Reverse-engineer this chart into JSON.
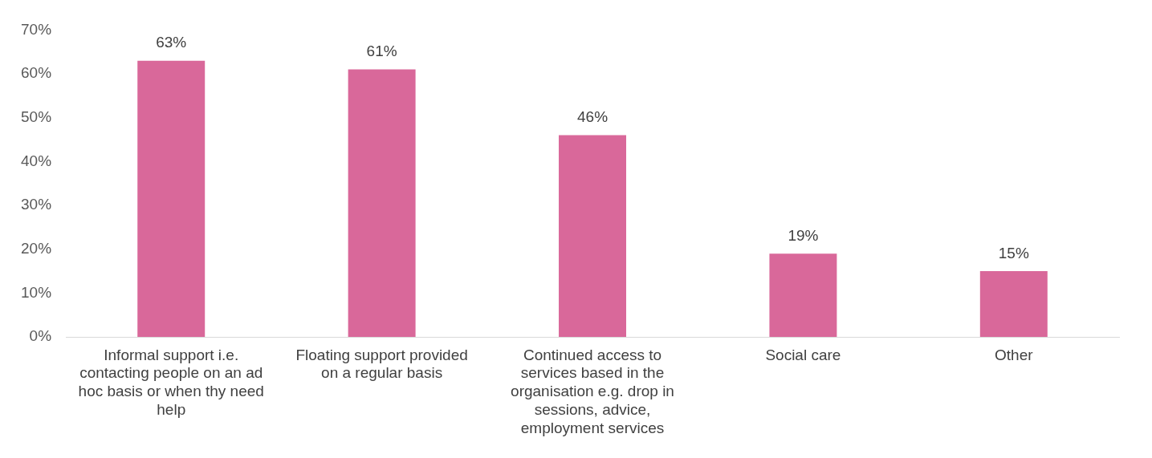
{
  "chart_data": {
    "type": "bar",
    "categories": [
      "Informal support i.e. contacting people on an ad hoc basis or when thy need help",
      "Floating support provided on a regular basis",
      "Continued access to services based in the organisation e.g. drop in sessions, advice, employment services",
      "Social care",
      "Other"
    ],
    "values": [
      63,
      61,
      46,
      19,
      15
    ],
    "color": "#d9689a",
    "ylim": [
      0,
      70
    ],
    "yticks": [
      {
        "value": 0,
        "label": "0%"
      },
      {
        "value": 10,
        "label": "10%"
      },
      {
        "value": 20,
        "label": "20%"
      },
      {
        "value": 30,
        "label": "30%"
      },
      {
        "value": 40,
        "label": "40%"
      },
      {
        "value": 50,
        "label": "50%"
      },
      {
        "value": 60,
        "label": "60%"
      },
      {
        "value": 70,
        "label": "70%"
      }
    ],
    "value_labels": [
      "63%",
      "61%",
      "46%",
      "19%",
      "15%"
    ],
    "grid": false,
    "legend": false
  }
}
